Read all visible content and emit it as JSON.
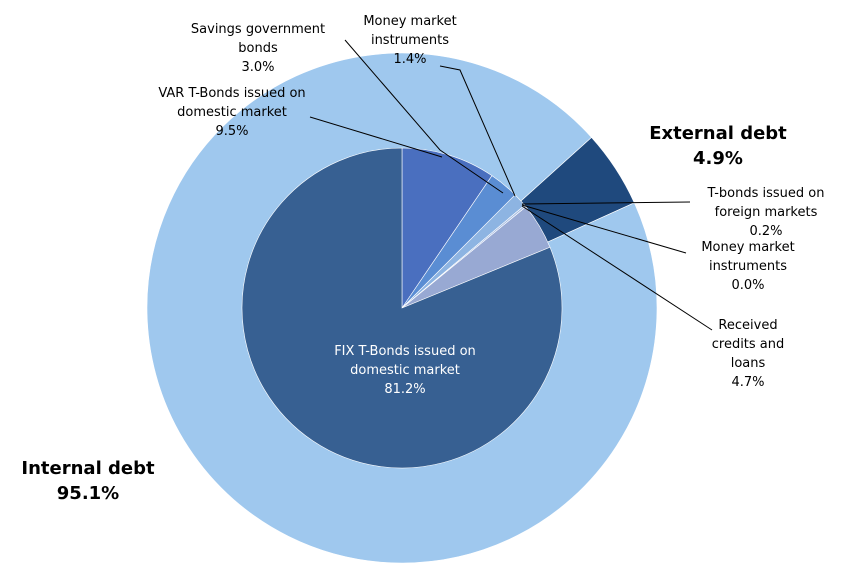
{
  "chart_data": {
    "type": "pie",
    "outer": {
      "categories": [
        "External debt",
        "Internal debt"
      ],
      "values": [
        4.9,
        95.1
      ],
      "value_labels": [
        "4.9%",
        "95.1%"
      ],
      "colors": [
        "#1f497d",
        "#9fc8ee"
      ]
    },
    "inner": {
      "categories": [
        "VAR T-Bonds issued on domestic market",
        "Savings government bonds",
        "Money market instruments",
        "T-bonds issued on foreign markets",
        "Money market instruments",
        "Received credits and loans",
        "FIX T-Bonds issued on domestic market"
      ],
      "values": [
        9.5,
        3.0,
        1.4,
        0.2,
        0.0,
        4.7,
        81.2
      ],
      "value_labels": [
        "9.5%",
        "3.0%",
        "1.4%",
        "0.2%",
        "0.0%",
        "4.7%",
        "81.2%"
      ],
      "colors": [
        "#4a6fbf",
        "#5a8dd3",
        "#8db4e2",
        "#a6bde3",
        "#a6bde3",
        "#98a9d3",
        "#376092"
      ]
    }
  }
}
